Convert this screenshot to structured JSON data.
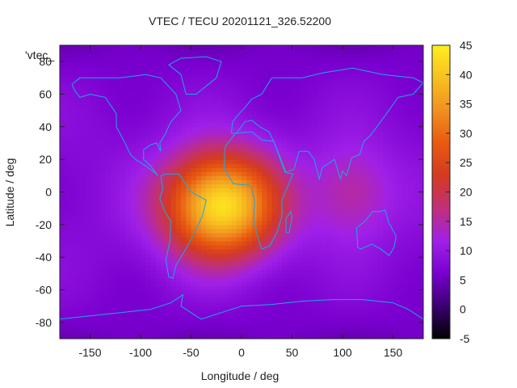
{
  "chart_data": {
    "type": "heatmap",
    "title": "VTEC / TECU 20201121_326.52200",
    "xlabel": "Longitude / deg",
    "ylabel": "Latitude / deg",
    "xlim": [
      -180,
      180
    ],
    "ylim": [
      -90,
      90
    ],
    "x_ticks": [
      -150,
      -100,
      -50,
      0,
      50,
      100,
      150
    ],
    "y_ticks": [
      -80,
      -60,
      -40,
      -20,
      0,
      20,
      40,
      60,
      80
    ],
    "colorbar": {
      "range": [
        -5,
        45
      ],
      "ticks": [
        -5,
        0,
        5,
        10,
        15,
        20,
        25,
        30,
        35,
        40,
        45
      ],
      "palette": [
        "#000000",
        "#3a0070",
        "#7a00d0",
        "#a020e8",
        "#c0307a",
        "#d43a20",
        "#e85a10",
        "#f09020",
        "#f8c020",
        "#ffee20"
      ]
    },
    "series_label": "'vtec_",
    "background_level": 8,
    "anomaly": {
      "center_lon": -20,
      "center_lat": -8,
      "peak_value": 44,
      "lon_extent": 140,
      "lat_extent": 80
    },
    "secondary_anomaly": {
      "center_lon": 110,
      "center_lat": 0,
      "peak_value": 16
    },
    "overlay": "coastlines"
  }
}
